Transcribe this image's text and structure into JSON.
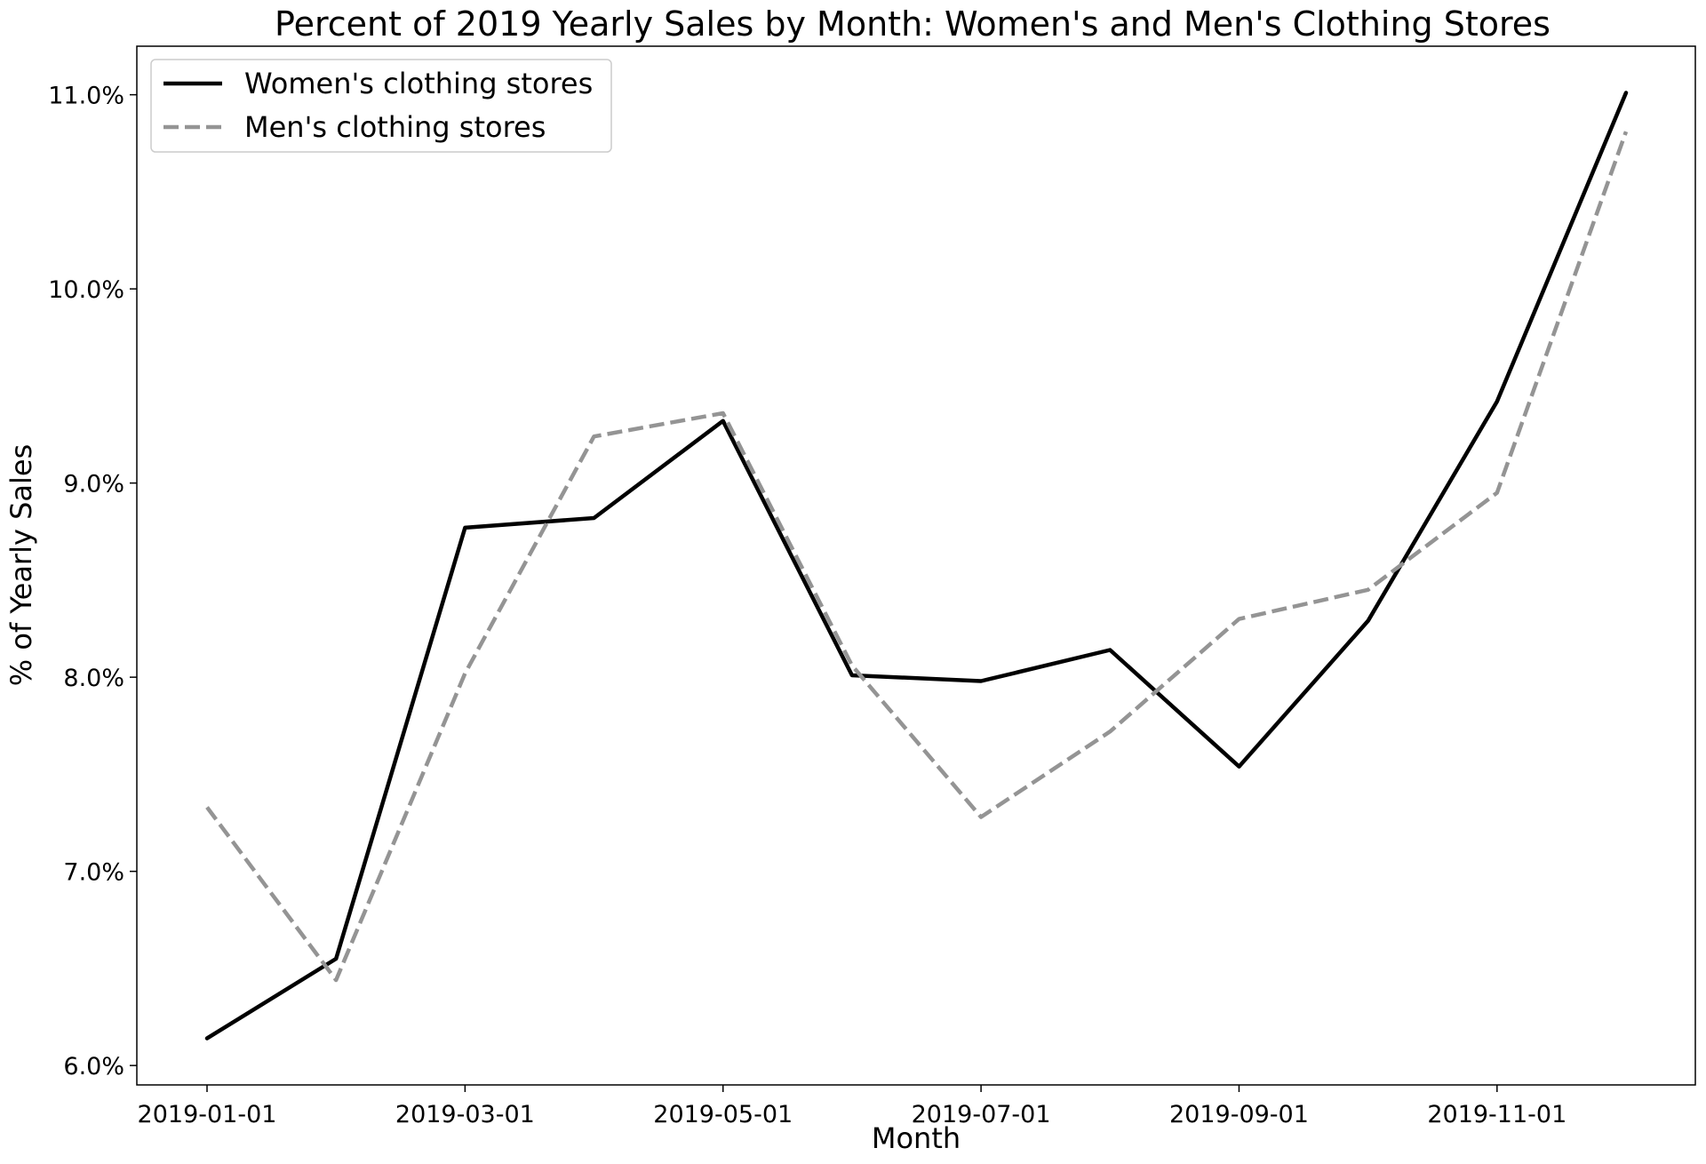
{
  "chart_data": {
    "type": "line",
    "title": "Percent of 2019 Yearly Sales by Month: Women's and Men's Clothing Stores",
    "xlabel": "Month",
    "ylabel": "% of Yearly Sales",
    "x": [
      "2019-01-01",
      "2019-02-01",
      "2019-03-01",
      "2019-04-01",
      "2019-05-01",
      "2019-06-01",
      "2019-07-01",
      "2019-08-01",
      "2019-09-01",
      "2019-10-01",
      "2019-11-01",
      "2019-12-01"
    ],
    "x_tick_labels": [
      "2019-01-01",
      "2019-03-01",
      "2019-05-01",
      "2019-07-01",
      "2019-09-01",
      "2019-11-01"
    ],
    "y_tick_labels": [
      "6.0%",
      "7.0%",
      "8.0%",
      "9.0%",
      "10.0%",
      "11.0%"
    ],
    "y_ticks": [
      6.0,
      7.0,
      8.0,
      9.0,
      10.0,
      11.0
    ],
    "ylim": [
      5.9,
      11.25
    ],
    "grid": false,
    "legend_position": "top-left",
    "series": [
      {
        "name": "Women's clothing stores",
        "color": "#000000",
        "style": "solid",
        "values": [
          6.14,
          6.55,
          8.77,
          8.82,
          9.32,
          8.01,
          7.98,
          8.14,
          7.54,
          8.29,
          9.42,
          11.01
        ]
      },
      {
        "name": "Men's clothing stores",
        "color": "#949494",
        "style": "dashed",
        "values": [
          7.33,
          6.44,
          8.02,
          9.24,
          9.36,
          8.06,
          7.28,
          7.72,
          8.3,
          8.45,
          8.95,
          10.81
        ]
      }
    ]
  }
}
